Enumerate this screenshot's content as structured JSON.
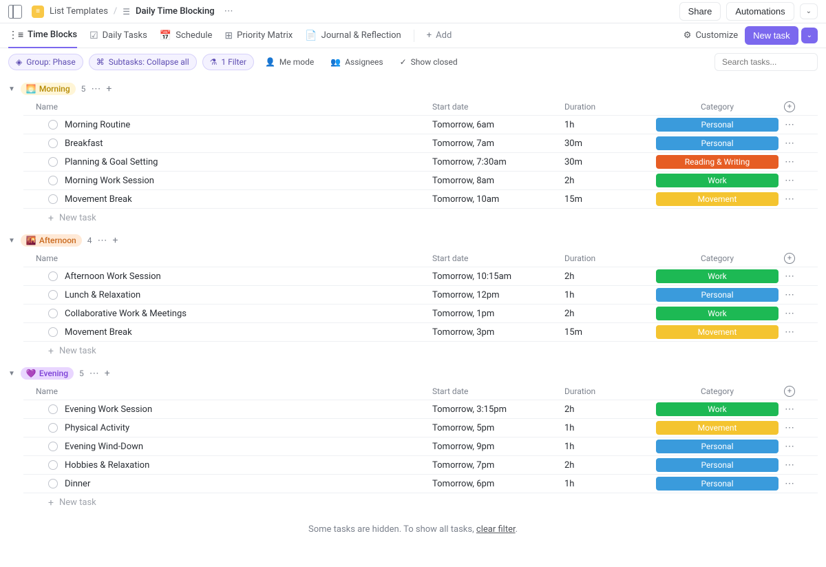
{
  "header": {
    "breadcrumb_folder_label": "List Templates",
    "breadcrumb_title": "Daily Time Blocking",
    "share_label": "Share",
    "automations_label": "Automations"
  },
  "tabs": {
    "items": [
      {
        "label": "Time Blocks",
        "icon": "list-ordered",
        "active": true
      },
      {
        "label": "Daily Tasks",
        "icon": "list-check",
        "active": false
      },
      {
        "label": "Schedule",
        "icon": "calendar",
        "active": false
      },
      {
        "label": "Priority Matrix",
        "icon": "grid",
        "active": false
      },
      {
        "label": "Journal & Reflection",
        "icon": "doc",
        "active": false
      }
    ],
    "add_label": "Add",
    "customize_label": "Customize",
    "new_task_label": "New task"
  },
  "filters": {
    "group_label": "Group: Phase",
    "subtasks_label": "Subtasks: Collapse all",
    "filter_label": "1 Filter",
    "me_mode_label": "Me mode",
    "assignees_label": "Assignees",
    "show_closed_label": "Show closed",
    "search_placeholder": "Search tasks..."
  },
  "columns": {
    "name": "Name",
    "start_date": "Start date",
    "duration": "Duration",
    "category": "Category"
  },
  "new_task_label": "New task",
  "category_colors": {
    "Personal": "#3a9bdc",
    "Reading & Writing": "#e65d24",
    "Work": "#1db954",
    "Movement": "#f4c430"
  },
  "groups": [
    {
      "id": "morning",
      "label": "Morning",
      "emoji": "🌅",
      "badge_class": "phase-morning",
      "count": "5",
      "tasks": [
        {
          "name": "Morning Routine",
          "start": "Tomorrow, 6am",
          "duration": "1h",
          "category": "Personal"
        },
        {
          "name": "Breakfast",
          "start": "Tomorrow, 7am",
          "duration": "30m",
          "category": "Personal"
        },
        {
          "name": "Planning & Goal Setting",
          "start": "Tomorrow, 7:30am",
          "duration": "30m",
          "category": "Reading & Writing"
        },
        {
          "name": "Morning Work Session",
          "start": "Tomorrow, 8am",
          "duration": "2h",
          "category": "Work"
        },
        {
          "name": "Movement Break",
          "start": "Tomorrow, 10am",
          "duration": "15m",
          "category": "Movement"
        }
      ]
    },
    {
      "id": "afternoon",
      "label": "Afternoon",
      "emoji": "🌇",
      "badge_class": "phase-afternoon",
      "count": "4",
      "tasks": [
        {
          "name": "Afternoon Work Session",
          "start": "Tomorrow, 10:15am",
          "duration": "2h",
          "category": "Work"
        },
        {
          "name": "Lunch & Relaxation",
          "start": "Tomorrow, 12pm",
          "duration": "1h",
          "category": "Personal"
        },
        {
          "name": "Collaborative Work & Meetings",
          "start": "Tomorrow, 1pm",
          "duration": "2h",
          "category": "Work"
        },
        {
          "name": "Movement Break",
          "start": "Tomorrow, 3pm",
          "duration": "15m",
          "category": "Movement"
        }
      ]
    },
    {
      "id": "evening",
      "label": "Evening",
      "emoji": "💜",
      "badge_class": "phase-evening",
      "count": "5",
      "tasks": [
        {
          "name": "Evening Work Session",
          "start": "Tomorrow, 3:15pm",
          "duration": "2h",
          "category": "Work"
        },
        {
          "name": "Physical Activity",
          "start": "Tomorrow, 5pm",
          "duration": "1h",
          "category": "Movement"
        },
        {
          "name": "Evening Wind-Down",
          "start": "Tomorrow, 9pm",
          "duration": "1h",
          "category": "Personal"
        },
        {
          "name": "Hobbies & Relaxation",
          "start": "Tomorrow, 7pm",
          "duration": "2h",
          "category": "Personal"
        },
        {
          "name": "Dinner",
          "start": "Tomorrow, 6pm",
          "duration": "1h",
          "category": "Personal"
        }
      ]
    }
  ],
  "footer": {
    "hint_prefix": "Some tasks are hidden. To show all tasks, ",
    "hint_link": "clear filter",
    "hint_suffix": "."
  }
}
